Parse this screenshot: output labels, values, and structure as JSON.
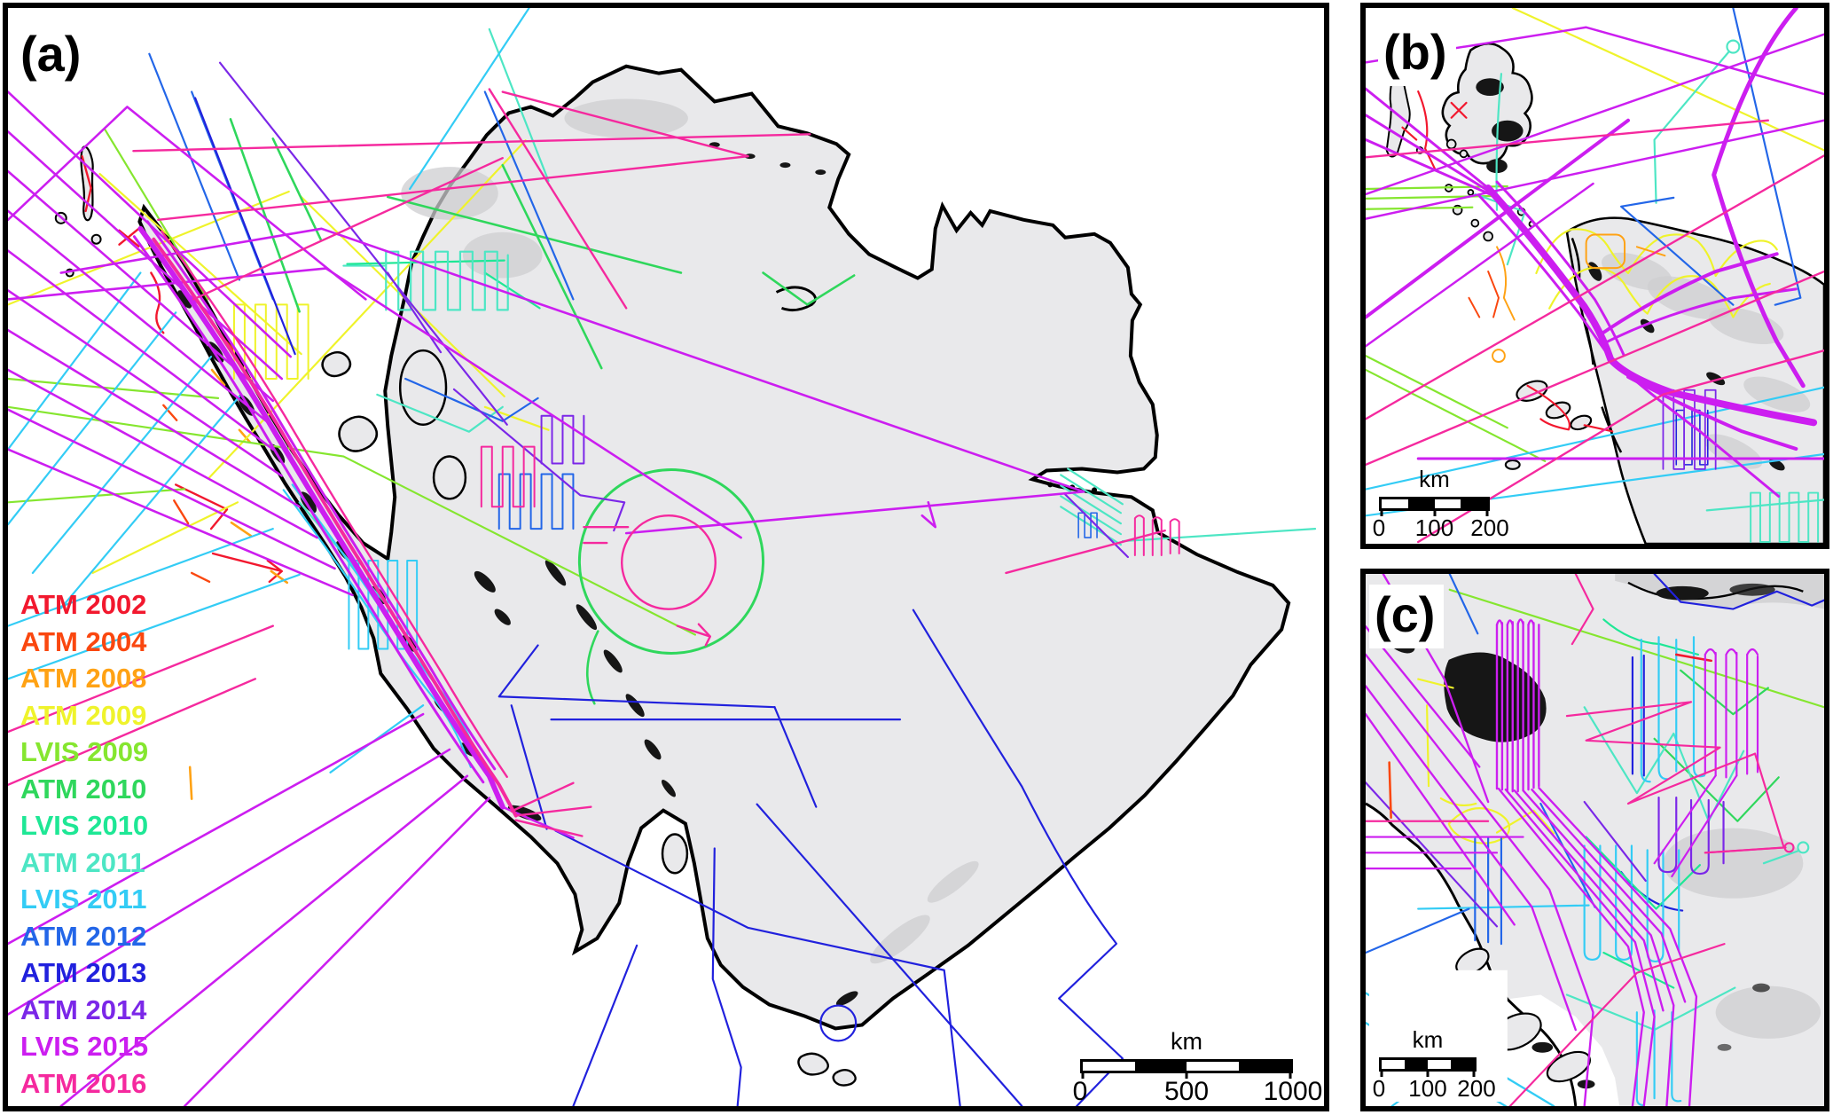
{
  "panels": {
    "a": {
      "label": "(a)"
    },
    "b": {
      "label": "(b)"
    },
    "c": {
      "label": "(c)"
    }
  },
  "scalebars": {
    "a": {
      "unit": "km",
      "tick_labels": [
        "0",
        "500",
        "1000"
      ]
    },
    "b": {
      "unit": "km",
      "tick_labels": [
        "0",
        "100",
        "200"
      ]
    },
    "c": {
      "unit": "km",
      "tick_labels": [
        "0",
        "100",
        "200"
      ]
    }
  },
  "legend": {
    "items": [
      {
        "id": "atm2002",
        "label": "ATM 2002",
        "color": "#f2182e"
      },
      {
        "id": "atm2004",
        "label": "ATM 2004",
        "color": "#fa470f"
      },
      {
        "id": "atm2008",
        "label": "ATM 2008",
        "color": "#ffa214"
      },
      {
        "id": "atm2009",
        "label": "ATM 2009",
        "color": "#eff32b"
      },
      {
        "id": "lvis2009",
        "label": "LVIS 2009",
        "color": "#85e62f"
      },
      {
        "id": "atm2010",
        "label": "ATM 2010",
        "color": "#2fd75c"
      },
      {
        "id": "lvis2010",
        "label": "LVIS 2010",
        "color": "#1ee795"
      },
      {
        "id": "atm2011",
        "label": "ATM 2011",
        "color": "#4de6c4"
      },
      {
        "id": "lvis2011",
        "label": "LVIS 2011",
        "color": "#33ccf5"
      },
      {
        "id": "atm2012",
        "label": "ATM 2012",
        "color": "#2366e8"
      },
      {
        "id": "atm2013",
        "label": "ATM 2013",
        "color": "#2121dd"
      },
      {
        "id": "atm2014",
        "label": "ATM 2014",
        "color": "#7b27e8"
      },
      {
        "id": "lvis2015",
        "label": "LVIS 2015",
        "color": "#cc1ef0"
      },
      {
        "id": "atm2016",
        "label": "ATM 2016",
        "color": "#f5299e"
      }
    ]
  },
  "map_colors": {
    "ocean": "#ffffff",
    "ice": "#e9e9eb",
    "coastline": "#000000",
    "rock": "#161616",
    "shading": "#cdcdd0",
    "border": "#000000"
  }
}
